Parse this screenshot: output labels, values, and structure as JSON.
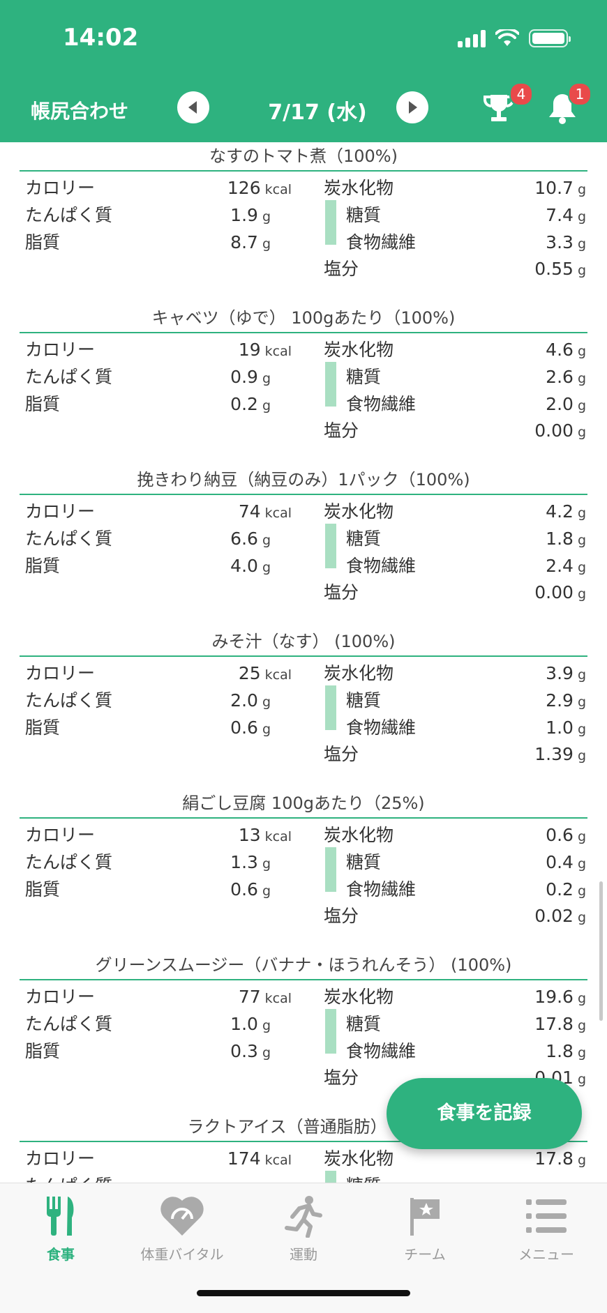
{
  "status_bar": {
    "time": "14:02"
  },
  "header": {
    "title": "帳尻合わせ",
    "date": "7/17 (水)",
    "trophy_badge": "4",
    "bell_badge": "1"
  },
  "labels": {
    "calorie": "カロリー",
    "protein": "たんぱく質",
    "fat": "脂質",
    "carbs": "炭水化物",
    "sugar": "糖質",
    "fiber": "食物繊維",
    "salt": "塩分",
    "kcal": "kcal",
    "g": "g"
  },
  "foods": [
    {
      "title": "なすのトマト煮（100%)",
      "calorie": "126",
      "protein": "1.9",
      "fat": "8.7",
      "carbs": "10.7",
      "sugar": "7.4",
      "fiber": "3.3",
      "salt": "0.55"
    },
    {
      "title": "キャベツ（ゆで） 100gあたり（100%)",
      "calorie": "19",
      "protein": "0.9",
      "fat": "0.2",
      "carbs": "4.6",
      "sugar": "2.6",
      "fiber": "2.0",
      "salt": "0.00"
    },
    {
      "title": "挽きわり納豆（納豆のみ）1パック（100%)",
      "calorie": "74",
      "protein": "6.6",
      "fat": "4.0",
      "carbs": "4.2",
      "sugar": "1.8",
      "fiber": "2.4",
      "salt": "0.00"
    },
    {
      "title": "みそ汁（なす） (100%)",
      "calorie": "25",
      "protein": "2.0",
      "fat": "0.6",
      "carbs": "3.9",
      "sugar": "2.9",
      "fiber": "1.0",
      "salt": "1.39"
    },
    {
      "title": "絹ごし豆腐 100gあたり（25%)",
      "calorie": "13",
      "protein": "1.3",
      "fat": "0.6",
      "carbs": "0.6",
      "sugar": "0.4",
      "fiber": "0.2",
      "salt": "0.02"
    },
    {
      "title": "グリーンスムージー（バナナ・ほうれんそう） (100%)",
      "calorie": "77",
      "protein": "1.0",
      "fat": "0.3",
      "carbs": "19.6",
      "sugar": "17.8",
      "fiber": "1.8",
      "salt": "0.01"
    },
    {
      "title": "ラクトアイス（普通脂肪） 1個",
      "calorie": "174",
      "protein": "",
      "fat": "",
      "carbs": "17.8",
      "sugar": "",
      "fiber": "",
      "salt": ""
    }
  ],
  "fab": {
    "label": "食事を記録"
  },
  "tabs": [
    {
      "label": "食事",
      "icon": "fork-knife-icon",
      "active": true
    },
    {
      "label": "体重バイタル",
      "icon": "heart-scale-icon",
      "active": false
    },
    {
      "label": "運動",
      "icon": "runner-icon",
      "active": false
    },
    {
      "label": "チーム",
      "icon": "flag-icon",
      "active": false
    },
    {
      "label": "メニュー",
      "icon": "menu-list-icon",
      "active": false
    }
  ],
  "colors": {
    "brand": "#2eb27f",
    "badge": "#e94a4a",
    "sugar_bar": "#a9dfc2"
  }
}
